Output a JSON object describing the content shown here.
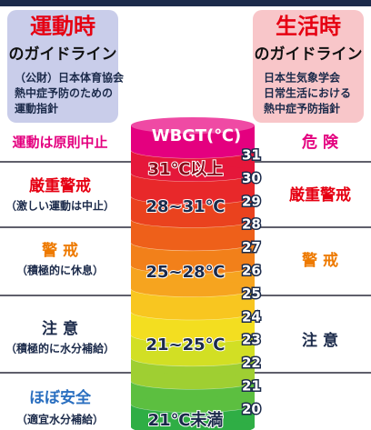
{
  "left_box": {
    "title": "運動時",
    "subtitle": "のガイドライン",
    "lines": [
      "（公財）日本体育協会",
      "熱中症予防のための",
      "運動指針"
    ]
  },
  "right_box": {
    "title": "生活時",
    "subtitle": "のガイドライン",
    "lines": [
      "日本生気象学会",
      "日常生活における",
      "熱中症予防指針"
    ]
  },
  "cylinder": {
    "header": "WBGT(℃)",
    "labels": [
      "31℃以上",
      "28~31℃",
      "25~28℃",
      "21~25℃",
      "21℃未満"
    ],
    "scale": [
      31,
      30,
      29,
      28,
      27,
      26,
      25,
      24,
      23,
      22,
      21,
      20
    ]
  },
  "left_rows": [
    {
      "level": "運動は原則中止"
    },
    {
      "level": "厳重警戒",
      "note": "（激しい運動は中止）"
    },
    {
      "level": "警 戒",
      "note": "（積極的に休息）"
    },
    {
      "level": "注 意",
      "note": "（積極的に水分補給）"
    },
    {
      "level": "ほぼ安全",
      "note": "（適宜水分補給）"
    }
  ],
  "right_rows": [
    {
      "level": "危 険"
    },
    {
      "level": "厳重警戒"
    },
    {
      "level": "警 戒"
    },
    {
      "level": "注 意"
    }
  ]
}
